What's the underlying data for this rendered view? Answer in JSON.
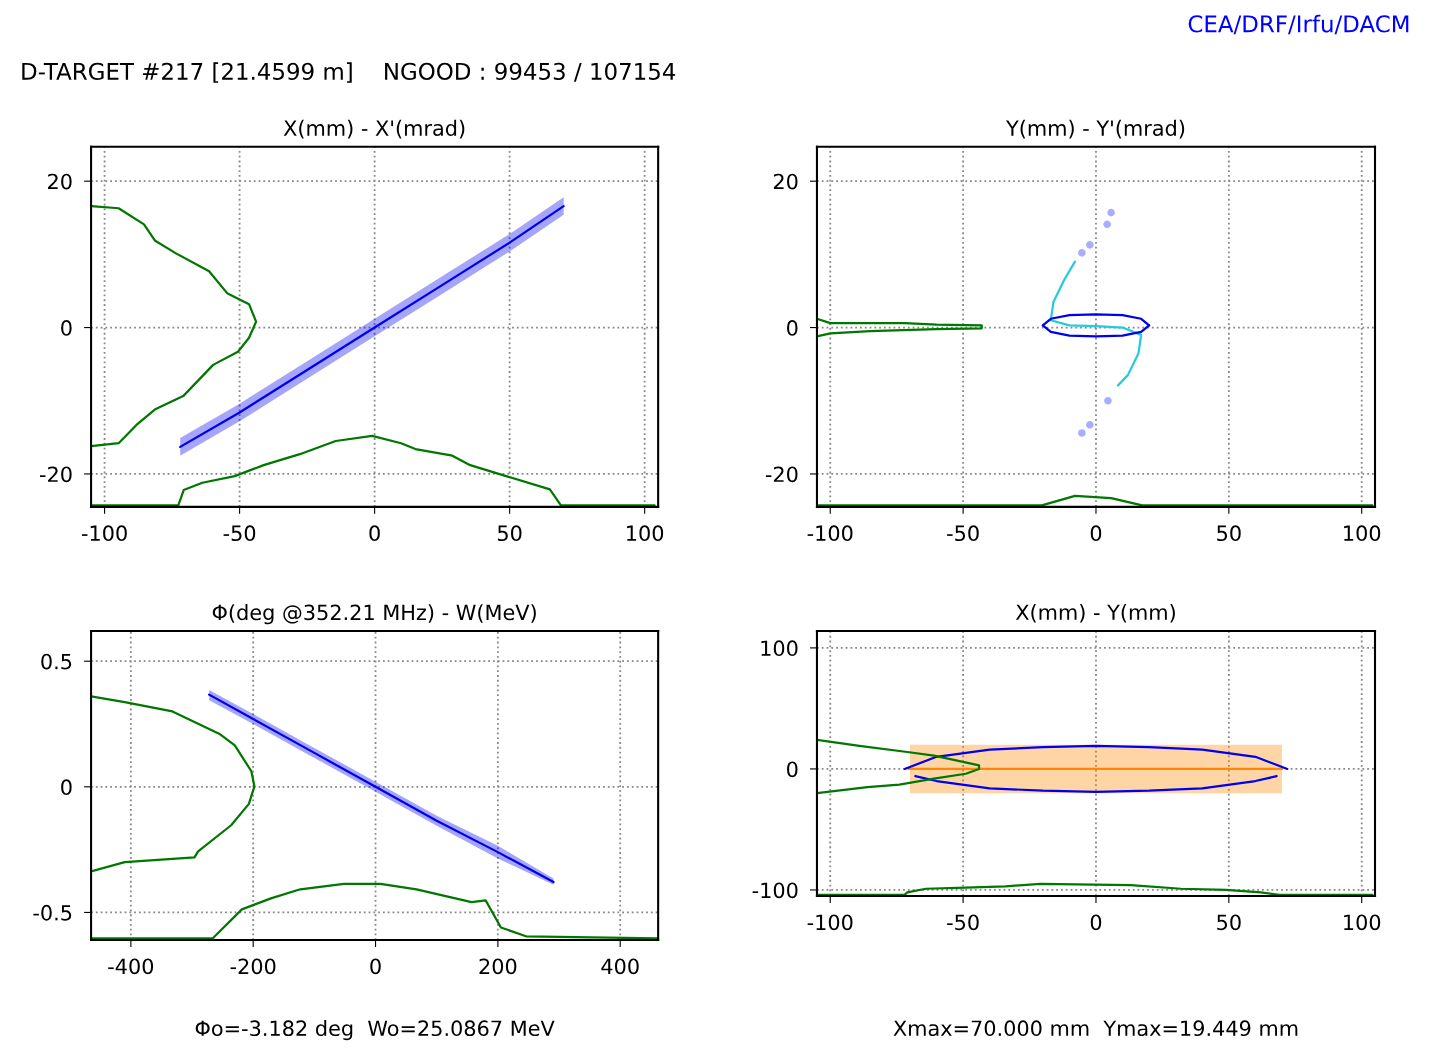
{
  "chart_data": [
    {
      "type": "line",
      "title": "X(mm) - X'(mrad)",
      "xlim": [
        -105,
        105
      ],
      "ylim": [
        -24.5,
        24.7
      ],
      "xticks": [
        -100,
        -50,
        0,
        50,
        100
      ],
      "yticks": [
        -20,
        0,
        20
      ],
      "grid": true,
      "line_style": "solid",
      "annotations": [
        "D-TARGET #217 [21.4599 m]    NGOOD : 99453 / 107154",
        "CEA/DRF/Irfu/DACM"
      ],
      "series": [
        {
          "type": "line",
          "color": "#0000ee",
          "x": [
            -72,
            -50,
            -25,
            0,
            25,
            50,
            70
          ],
          "values": [
            -16.3,
            -11.6,
            -5.8,
            0,
            5.8,
            11.6,
            16.6
          ],
          "lower": [
            -17.5,
            -12.8,
            -7.0,
            -1.2,
            4.6,
            10.4,
            15.4
          ],
          "upper": [
            -15.1,
            -10.4,
            -4.6,
            1.2,
            7.0,
            12.8,
            17.8
          ]
        },
        {
          "type": "line",
          "color": "#007700",
          "x": [
            -105,
            -94.8,
            -85.4,
            -81.4,
            -73.4,
            -61.3,
            -54.6,
            -46.5,
            -43.9,
            -46.5,
            -50.6,
            -59.8,
            -70.7,
            -81.4,
            -88.2,
            -94.8,
            -105
          ],
          "values": [
            16.6,
            16.3,
            14.1,
            11.9,
            10.1,
            7.7,
            4.7,
            3.2,
            0.8,
            -1.4,
            -3.3,
            -5.1,
            -9.3,
            -11.2,
            -13.3,
            -15.8,
            -16.2
          ]
        },
        {
          "type": "line",
          "color": "#007700",
          "x": [
            -105,
            -72.7,
            -70.7,
            -63.8,
            -51.8,
            -41.1,
            -27.7,
            -14.4,
            -0.9,
            9.8,
            15.1,
            28.8,
            35.4,
            48.7,
            64.9,
            69,
            103.7
          ],
          "values": [
            -24.3,
            -24.3,
            -22.2,
            -21.2,
            -20.3,
            -18.8,
            -17.3,
            -15.5,
            -14.8,
            -15.8,
            -16.6,
            -17.5,
            -18.8,
            -20.3,
            -22.1,
            -24.3,
            -24.3
          ]
        }
      ]
    },
    {
      "type": "line",
      "title": "Y(mm) - Y'(mrad)",
      "xlim": [
        -105,
        105
      ],
      "ylim": [
        -24.5,
        24.7
      ],
      "xticks": [
        -100,
        -50,
        0,
        50,
        100
      ],
      "yticks": [
        -20,
        0,
        20
      ],
      "grid": true,
      "line_style": "solid",
      "series": [
        {
          "type": "line",
          "color": "#22ccdd",
          "x": [
            -7.9,
            -12,
            -16,
            -17,
            -10,
            0,
            10,
            17,
            16,
            12,
            8.3
          ],
          "values": [
            9.0,
            6.5,
            3.5,
            1.0,
            0.3,
            0.2,
            0,
            -1.0,
            -3.5,
            -6.5,
            -7.9
          ]
        },
        {
          "type": "line",
          "color": "#0000ee",
          "x": [
            -20,
            -17,
            -10,
            0,
            10,
            17,
            20
          ],
          "values": [
            0.3,
            1.2,
            1.7,
            1.8,
            1.7,
            1.2,
            0.3
          ]
        },
        {
          "type": "line",
          "color": "#0000ee",
          "x": [
            -20,
            -17,
            -10,
            0,
            10,
            17,
            20
          ],
          "values": [
            0.3,
            -0.6,
            -1.1,
            -1.2,
            -1.1,
            -0.6,
            0.3
          ]
        },
        {
          "type": "scatter",
          "marker": "circle",
          "color": "#8888ff",
          "x": [
            5.7,
            4.2,
            -2.3,
            -5.3,
            4.5,
            -2.3,
            -5.3
          ],
          "values": [
            15.7,
            14.1,
            11.3,
            10.2,
            -10,
            -13.3,
            -14.4
          ]
        },
        {
          "type": "line",
          "color": "#007700",
          "x": [
            -105,
            -100,
            -72,
            -60,
            -43,
            -43,
            -60,
            -85,
            -100,
            -105
          ],
          "values": [
            1.2,
            0.6,
            0.6,
            0.4,
            0.3,
            -0.1,
            -0.2,
            -0.5,
            -0.8,
            -1.2
          ]
        },
        {
          "type": "line",
          "color": "#007700",
          "x": [
            -105,
            -20.4,
            -7.9,
            5.7,
            17.4,
            104
          ],
          "values": [
            -24.3,
            -24.3,
            -23.0,
            -23.3,
            -24.3,
            -24.3
          ]
        }
      ]
    },
    {
      "type": "line",
      "title": "Φ(deg @352.21 MHz) - W(MeV)",
      "xlim": [
        -465,
        462
      ],
      "ylim": [
        -0.61,
        0.62
      ],
      "xticks": [
        -400,
        -200,
        0,
        200,
        400
      ],
      "yticks": [
        -0.5,
        0,
        0.5
      ],
      "grid": true,
      "line_style": "solid",
      "annotations": [
        "Φo=-3.182 deg  Wo=25.0867 MeV"
      ],
      "series": [
        {
          "type": "line",
          "color": "#0000ee",
          "x": [
            -272,
            -200,
            -100,
            0,
            100,
            200,
            291
          ],
          "values": [
            0.367,
            0.27,
            0.135,
            0,
            -0.135,
            -0.26,
            -0.379
          ],
          "lower": [
            0.345,
            0.25,
            0.115,
            -0.02,
            -0.155,
            -0.285,
            -0.39
          ],
          "upper": [
            0.385,
            0.29,
            0.155,
            0.02,
            -0.115,
            -0.235,
            -0.365
          ]
        },
        {
          "type": "line",
          "color": "#007700",
          "x": [
            -465,
            -410,
            -332,
            -290,
            -254,
            -230,
            -203,
            -198,
            -207,
            -236,
            -290,
            -296,
            -410,
            -465
          ],
          "values": [
            0.36,
            0.337,
            0.3,
            0.251,
            0.209,
            0.165,
            0.062,
            0.002,
            -0.068,
            -0.153,
            -0.257,
            -0.281,
            -0.3,
            -0.337
          ]
        },
        {
          "type": "line",
          "color": "#007700",
          "x": [
            -465,
            -266,
            -218.5,
            -171,
            -123,
            -51.6,
            8,
            67,
            157,
            180,
            205,
            246,
            461
          ],
          "values": [
            -0.603,
            -0.603,
            -0.488,
            -0.444,
            -0.408,
            -0.386,
            -0.386,
            -0.408,
            -0.459,
            -0.452,
            -0.56,
            -0.595,
            -0.603
          ]
        }
      ]
    },
    {
      "type": "line",
      "title": "X(mm) - Y(mm)",
      "xlim": [
        -105,
        105
      ],
      "ylim": [
        -105,
        114
      ],
      "xticks": [
        -100,
        -50,
        0,
        50,
        100
      ],
      "yticks": [
        -100,
        0,
        100
      ],
      "grid": true,
      "line_style": "solid",
      "annotations": [
        "Xmax=70.000 mm  Ymax=19.449 mm"
      ],
      "series": [
        {
          "type": "line",
          "color": "#ff8800",
          "x": [
            -70,
            70
          ],
          "values": [
            0,
            0
          ],
          "lower": [
            -20,
            -20
          ],
          "upper": [
            20,
            20
          ]
        },
        {
          "type": "line",
          "color": "#0000ee",
          "x": [
            -72,
            -60,
            -40,
            -20,
            0,
            20,
            40,
            60,
            72
          ],
          "values": [
            0,
            10,
            16,
            18,
            19,
            18,
            16,
            10,
            0
          ]
        },
        {
          "type": "line",
          "color": "#0000ee",
          "x": [
            -68,
            -60,
            -40,
            -20,
            0,
            20,
            40,
            60,
            68
          ],
          "values": [
            -6,
            -10,
            -16,
            -18,
            -19,
            -18,
            -16,
            -10,
            -6
          ]
        },
        {
          "type": "line",
          "color": "#007700",
          "x": [
            -105,
            -89,
            -71,
            -61,
            -44,
            -44,
            -49,
            -61,
            -74,
            -86,
            -105
          ],
          "values": [
            24,
            19,
            14,
            11,
            3,
            0,
            -4,
            -8,
            -13,
            -15,
            -20
          ]
        },
        {
          "type": "line",
          "color": "#007700",
          "x": [
            -105,
            -72,
            -71,
            -64,
            -49,
            -34,
            -21,
            13,
            32,
            49,
            62,
            69,
            104
          ],
          "values": [
            -104,
            -104,
            -102,
            -99,
            -98,
            -97,
            -95,
            -96,
            -99,
            -100,
            -102,
            -104,
            -104
          ]
        }
      ]
    }
  ]
}
